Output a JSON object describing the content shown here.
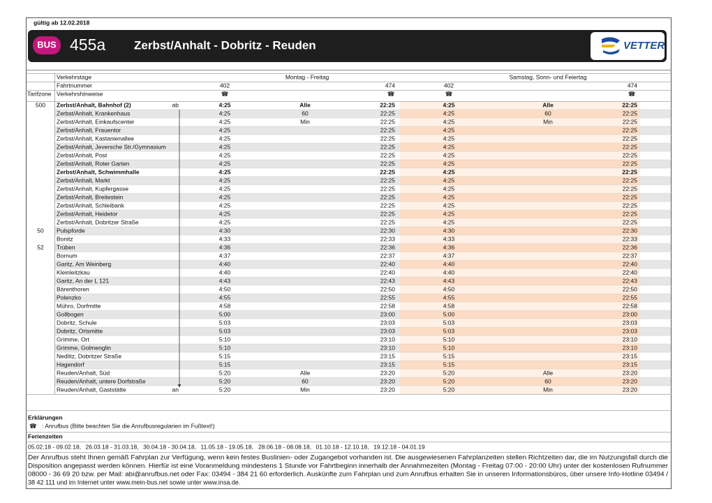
{
  "header": {
    "valid_from": "gültig ab 12.02.2018",
    "badge": "BUS",
    "line": "455a",
    "route": "Zerbst/Anhalt - Dobritz - Reuden",
    "operator": "VETTER"
  },
  "table": {
    "labels": {
      "days": "Verkehrstage",
      "trip": "Fahrtnummer",
      "zone": "Tarifzone",
      "hints": "Verkehrshinweise"
    },
    "day_groups": [
      "Montag - Freitag",
      "Samstag, Sonn- und Feiertag"
    ],
    "trips": [
      402,
      474,
      402,
      474
    ],
    "hint_icon": "☎",
    "bold_rows": [
      0,
      8
    ],
    "rows": [
      [
        500,
        "Zerbst/Anhalt, Bahnhof (2)",
        "ab",
        "4:25",
        "Alle",
        "22:25",
        "4:25",
        "Alle",
        "22:25"
      ],
      [
        null,
        "Zerbst/Anhalt, Krankenhaus",
        null,
        "4:25",
        60,
        "22:25",
        "4:25",
        60,
        "22:25"
      ],
      [
        null,
        "Zerbst/Anhalt, Einkaufscenter",
        null,
        "4:25",
        "Min",
        "22:25",
        "4:25",
        "Min",
        "22:25"
      ],
      [
        null,
        "Zerbst/Anhalt, Frauentor",
        null,
        "4:25",
        null,
        "22:25",
        "4:25",
        null,
        "22:25"
      ],
      [
        null,
        "Zerbst/Anhalt, Kastanienallee",
        null,
        "4:25",
        null,
        "22:25",
        "4:25",
        null,
        "22:25"
      ],
      [
        null,
        "Zerbst/Anhalt, Jeversche Str./Gymnasium",
        null,
        "4:25",
        null,
        "22:25",
        "4:25",
        null,
        "22:25"
      ],
      [
        null,
        "Zerbst/Anhalt, Post",
        null,
        "4:25",
        null,
        "22:25",
        "4:25",
        null,
        "22:25"
      ],
      [
        null,
        "Zerbst/Anhalt, Roter Garten",
        null,
        "4:25",
        null,
        "22:25",
        "4:25",
        null,
        "22:25"
      ],
      [
        null,
        "Zerbst/Anhalt, Schwimmhalle",
        null,
        "4:25",
        null,
        "22:25",
        "4:25",
        null,
        "22:25"
      ],
      [
        null,
        "Zerbst/Anhalt, Markt",
        null,
        "4:25",
        null,
        "22:25",
        "4:25",
        null,
        "22:25"
      ],
      [
        null,
        "Zerbst/Anhalt, Kupfergasse",
        null,
        "4:25",
        null,
        "22:25",
        "4:25",
        null,
        "22:25"
      ],
      [
        null,
        "Zerbst/Anhalt, Breitestein",
        null,
        "4:25",
        null,
        "22:25",
        "4:25",
        null,
        "22:25"
      ],
      [
        null,
        "Zerbst/Anhalt, Schleibank",
        null,
        "4:25",
        null,
        "22:25",
        "4:25",
        null,
        "22:25"
      ],
      [
        null,
        "Zerbst/Anhalt, Heidetor",
        null,
        "4:25",
        null,
        "22:25",
        "4:25",
        null,
        "22:25"
      ],
      [
        null,
        "Zerbst/Anhalt, Dobritzer Straße",
        null,
        "4:25",
        null,
        "22:25",
        "4:25",
        null,
        "22:25"
      ],
      [
        50,
        "Pulspforde",
        null,
        "4:30",
        null,
        "22:30",
        "4:30",
        null,
        "22:30"
      ],
      [
        null,
        "Bonitz",
        null,
        "4:33",
        null,
        "22:33",
        "4:33",
        null,
        "22:33"
      ],
      [
        52,
        "Trüben",
        null,
        "4:36",
        null,
        "22:36",
        "4:36",
        null,
        "22:36"
      ],
      [
        null,
        "Bornum",
        null,
        "4:37",
        null,
        "22:37",
        "4:37",
        null,
        "22:37"
      ],
      [
        null,
        "Garitz, Am Weinberg",
        null,
        "4:40",
        null,
        "22:40",
        "4:40",
        null,
        "22:40"
      ],
      [
        null,
        "Kleinleitzkau",
        null,
        "4:40",
        null,
        "22:40",
        "4:40",
        null,
        "22:40"
      ],
      [
        null,
        "Garitz, An der L 121",
        null,
        "4:43",
        null,
        "22:43",
        "4:43",
        null,
        "22:43"
      ],
      [
        null,
        "Bärenthoren",
        null,
        "4:50",
        null,
        "22:50",
        "4:50",
        null,
        "22:50"
      ],
      [
        null,
        "Polenzko",
        null,
        "4:55",
        null,
        "22:55",
        "4:55",
        null,
        "22:55"
      ],
      [
        null,
        "Mühro, Dorfmitte",
        null,
        "4:58",
        null,
        "22:58",
        "4:58",
        null,
        "22:58"
      ],
      [
        null,
        "Gollbogen",
        null,
        "5:00",
        null,
        "23:00",
        "5:00",
        null,
        "23:00"
      ],
      [
        null,
        "Dobritz, Schule",
        null,
        "5:03",
        null,
        "23:03",
        "5:03",
        null,
        "23:03"
      ],
      [
        null,
        "Dobritz, Ortsmitte",
        null,
        "5:03",
        null,
        "23:03",
        "5:03",
        null,
        "23:03"
      ],
      [
        null,
        "Grimme, Ort",
        null,
        "5:10",
        null,
        "23:10",
        "5:10",
        null,
        "23:10"
      ],
      [
        null,
        "Grimme, Golmenglin",
        null,
        "5:10",
        null,
        "23:10",
        "5:10",
        null,
        "23:10"
      ],
      [
        null,
        "Nedlitz, Dobritzer Straße",
        null,
        "5:15",
        null,
        "23:15",
        "5:15",
        null,
        "23:15"
      ],
      [
        null,
        "Hagendorf",
        null,
        "5:15",
        null,
        "23:15",
        "5:15",
        null,
        "23:15"
      ],
      [
        null,
        "Reuden/Anhalt, Süd",
        null,
        "5:20",
        "Alle",
        "23:20",
        "5:20",
        "Alle",
        "23:20"
      ],
      [
        null,
        "Reuden/Anhalt, untere Dorfstraße",
        null,
        "5:20",
        60,
        "23:20",
        "5:20",
        60,
        "23:20"
      ],
      [
        null,
        "Reuden/Anhalt, Gaststätte",
        "an",
        "5:20",
        "Min",
        "23:20",
        "5:20",
        "Min",
        "23:20"
      ]
    ]
  },
  "notes": {
    "title": "Erklärungen",
    "legend_icon": "☎",
    "legend_text": ":  Anrufbus (Bitte beachten Sie die Anrufbusregularien im Fußtext!)",
    "holidays_title": "Ferienzeiten",
    "holidays": [
      "05.02.18 - 09.02.18,",
      "26.03.18 - 31.03.18,",
      "30.04.18 - 30.04.18,",
      "11.05.18 - 19.05.18,",
      "28.06.18 - 08.08.18,",
      "01.10.18 - 12.10.18,",
      "19.12.18 - 04.01.19"
    ],
    "text": [
      "Der Anrufbus steht Ihnen gemäß Fahrplan zur Verfügung, wenn kein festes Buslinien- oder Zugangebot vorhanden ist. Die ausgewiesenen Fahrplanzeiten stellen Richtzeiten dar, die im Nutzungsfall durch die",
      "Disposition angepasst werden können. Hierfür ist eine Voranmeldung mindestens 1 Stunde vor Fahrtbeginn innerhalb der Annahmezeiten (Montag - Freitag 07:00 - 20:00 Uhr) unter der kostenlosen Rufnummer",
      "08000 - 36 69 20 bzw. per Mail: abi@anrufbus.net oder Fax: 03494 - 384 21 60 erforderlich. Auskünfte zum Fahrplan und zum Anrufbus erhalten Sie in unseren Informationsbüros, über unsere Info-Hotline 03494 /",
      "38 42 111 und im Internet unter www.mein-bus.net sowie unter www.insa.de."
    ]
  }
}
